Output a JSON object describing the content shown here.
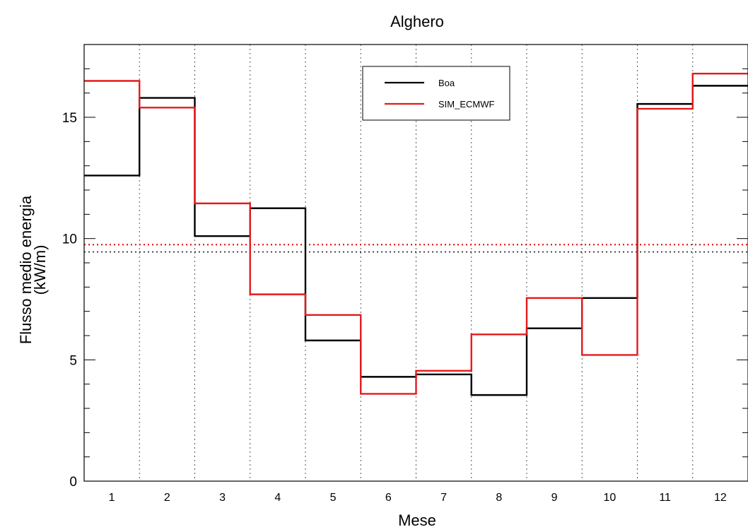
{
  "chart_data": {
    "type": "line",
    "step": "histogram",
    "title": "Alghero",
    "xlabel": "Mese",
    "ylabel": [
      "Flusso medio energia",
      "(kW/m)"
    ],
    "categories": [
      "1",
      "2",
      "3",
      "4",
      "5",
      "6",
      "7",
      "8",
      "9",
      "10",
      "11",
      "12"
    ],
    "x": [
      1,
      2,
      3,
      4,
      5,
      6,
      7,
      8,
      9,
      10,
      11,
      12
    ],
    "xlim": [
      0.5,
      12.5
    ],
    "ylim": [
      0,
      18
    ],
    "yticks": [
      0,
      5,
      10,
      15
    ],
    "ytick_labels": [
      "0",
      "5",
      "10",
      "15"
    ],
    "yminor_step": 1,
    "grid": "vertical dotted at month boundaries",
    "legend_position": "top-center",
    "series": [
      {
        "name": "Boa",
        "color": "#000000",
        "values": [
          12.6,
          15.8,
          10.1,
          11.25,
          5.8,
          4.3,
          4.4,
          3.55,
          6.3,
          7.55,
          15.55,
          16.3
        ],
        "mean": 9.45
      },
      {
        "name": "SIM_ECMWF",
        "color": "#e31a1c",
        "values": [
          16.5,
          15.4,
          11.45,
          7.7,
          6.85,
          3.6,
          4.55,
          6.05,
          7.55,
          5.2,
          15.35,
          16.8
        ],
        "mean": 9.75
      }
    ]
  }
}
